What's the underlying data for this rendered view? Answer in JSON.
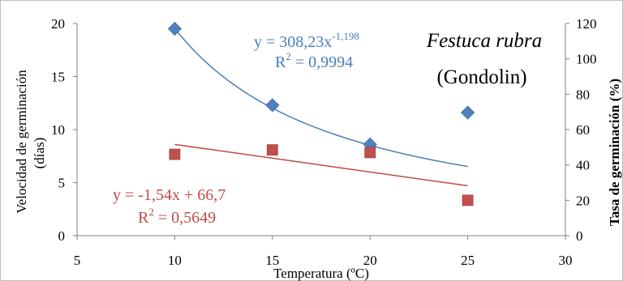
{
  "chart_data": {
    "type": "scatter",
    "title": "",
    "annotation": {
      "species": "Festuca rubra",
      "cultivar": "(Gondolin)"
    },
    "x_axis": {
      "label": "Temperatura (ºC)",
      "range": [
        5,
        30
      ],
      "ticks": [
        "5",
        "10",
        "15",
        "20",
        "25",
        "30"
      ]
    },
    "y_axis_left": {
      "label_line1": "Velocidad de germinación",
      "label_line2": "(días)",
      "range": [
        0,
        20
      ],
      "ticks": [
        "0",
        "5",
        "10",
        "15",
        "20"
      ]
    },
    "y_axis_right": {
      "label": "Tasa de germinación (%)",
      "range": [
        0,
        120
      ],
      "ticks": [
        "0",
        "20",
        "40",
        "60",
        "80",
        "100",
        "120"
      ]
    },
    "series": [
      {
        "axis": "left",
        "marker": "diamond",
        "color": "#4f81bd",
        "points": [
          [
            10,
            19.5
          ],
          [
            15,
            12.3
          ],
          [
            20,
            8.6
          ],
          [
            25,
            11.6
          ]
        ]
      },
      {
        "axis": "right",
        "marker": "square",
        "color": "#c0504d",
        "points": [
          [
            10,
            46
          ],
          [
            15,
            48.5
          ],
          [
            20,
            47
          ],
          [
            25,
            20
          ]
        ]
      }
    ],
    "trendlines": [
      {
        "axis": "left",
        "kind": "power",
        "coef": 308.23,
        "exp": -1.198,
        "x_range": [
          10,
          25
        ],
        "color": "#4a7ebb",
        "equation_prefix": "y = 308,23x",
        "equation_exp": "-1,198",
        "r2_prefix": "R",
        "r2_sup": "2",
        "r2_value": " = 0,9994"
      },
      {
        "axis": "left",
        "kind": "linear",
        "y_at_start": 8.6,
        "y_at_end": 4.7,
        "x_range": [
          10,
          25
        ],
        "color": "#be4b48",
        "equation": "y = -1,54x  + 66,7",
        "r2_prefix": "R",
        "r2_sup": "2",
        "r2_value": " = 0,5649"
      }
    ],
    "grid": false,
    "legend": "none"
  }
}
